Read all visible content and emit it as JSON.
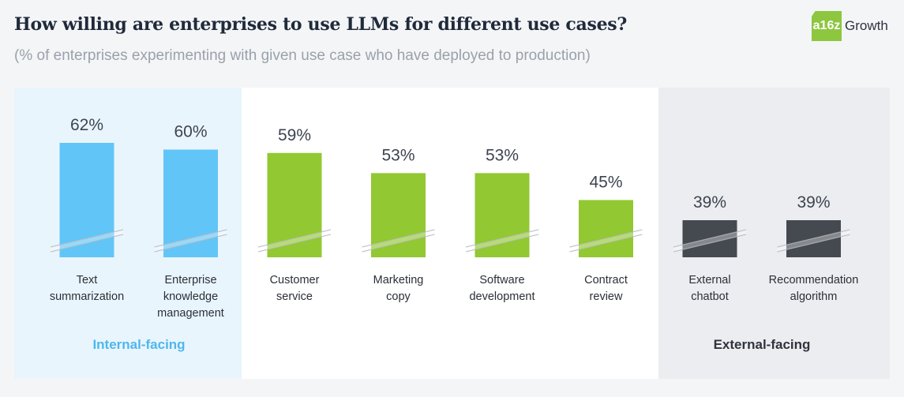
{
  "header": {
    "title": "How willing are enterprises to use LLMs for different use cases?",
    "subtitle": "(% of enterprises experimenting with given use case who have deployed to production)"
  },
  "logo": {
    "mark": "a16z",
    "text": "Growth"
  },
  "colors": {
    "internal": "#62c5f7",
    "middle": "#92c831",
    "external": "#454950",
    "internal_label": "#4db7ee",
    "external_label": "#2f343c"
  },
  "chart_data": {
    "type": "bar",
    "title": "How willing are enterprises to use LLMs for different use cases?",
    "subtitle": "(% of enterprises experimenting with given use case who have deployed to production)",
    "categories": [
      [
        "Text",
        "summarization"
      ],
      [
        "Enterprise",
        "knowledge",
        "management"
      ],
      [
        "Customer",
        "service"
      ],
      [
        "Marketing",
        "copy"
      ],
      [
        "Software",
        "development"
      ],
      [
        "Contract",
        "review"
      ],
      [
        "External",
        "chatbot"
      ],
      [
        "Recommendation",
        "algorithm"
      ]
    ],
    "values": [
      62,
      60,
      59,
      53,
      53,
      45,
      39,
      39
    ],
    "value_labels": [
      "62%",
      "60%",
      "59%",
      "53%",
      "53%",
      "45%",
      "39%",
      "39%"
    ],
    "bar_groups": [
      "internal",
      "internal",
      "middle",
      "middle",
      "middle",
      "middle",
      "external",
      "external"
    ],
    "group_labels": {
      "internal": "Internal-facing",
      "external": "External-facing"
    },
    "axis_break": true,
    "grid": false,
    "legend": "none"
  }
}
